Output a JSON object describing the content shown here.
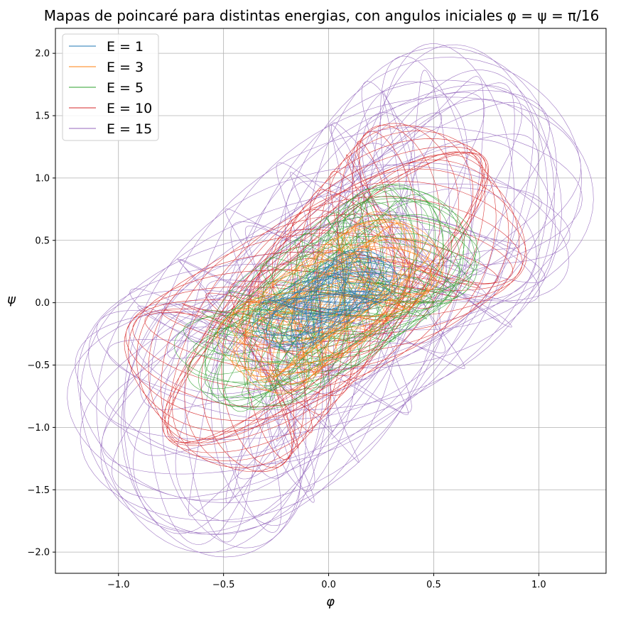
{
  "chart_data": {
    "type": "line",
    "title": "Mapas de poincaré para distintas energias, con angulos iniciales φ = ψ = π/16",
    "xlabel": "φ",
    "ylabel": "ψ",
    "xlim": [
      -1.3,
      1.32
    ],
    "ylim": [
      -2.17,
      2.2
    ],
    "x_ticks": [
      "−1.0",
      "−0.5",
      "0.0",
      "0.5",
      "1.0"
    ],
    "x_tick_values": [
      -1.0,
      -0.5,
      0.0,
      0.5,
      1.0
    ],
    "y_ticks": [
      "−2.0",
      "−1.5",
      "−1.0",
      "−0.5",
      "0.0",
      "0.5",
      "1.0",
      "1.5",
      "2.0"
    ],
    "y_tick_values": [
      -2.0,
      -1.5,
      -1.0,
      -0.5,
      0.0,
      0.5,
      1.0,
      1.5,
      2.0
    ],
    "grid": true,
    "legend_position": "top-left",
    "series": [
      {
        "name": "E = 1",
        "color": "#1f77b4",
        "x_extent": [
          -0.35,
          0.32
        ],
        "y_extent": [
          -0.38,
          0.42
        ]
      },
      {
        "name": "E = 3",
        "color": "#ff7f0e",
        "x_extent": [
          -0.5,
          0.52
        ],
        "y_extent": [
          -0.7,
          0.7
        ]
      },
      {
        "name": "E = 5",
        "color": "#2ca02c",
        "x_extent": [
          -0.7,
          0.68
        ],
        "y_extent": [
          -0.92,
          0.92
        ]
      },
      {
        "name": "E = 10",
        "color": "#d62728",
        "x_extent": [
          -0.95,
          0.92
        ],
        "y_extent": [
          -1.37,
          1.45
        ]
      },
      {
        "name": "E = 15",
        "color": "#9467bd",
        "x_extent": [
          -1.17,
          1.19
        ],
        "y_extent": [
          -1.97,
          2.01
        ]
      }
    ]
  }
}
